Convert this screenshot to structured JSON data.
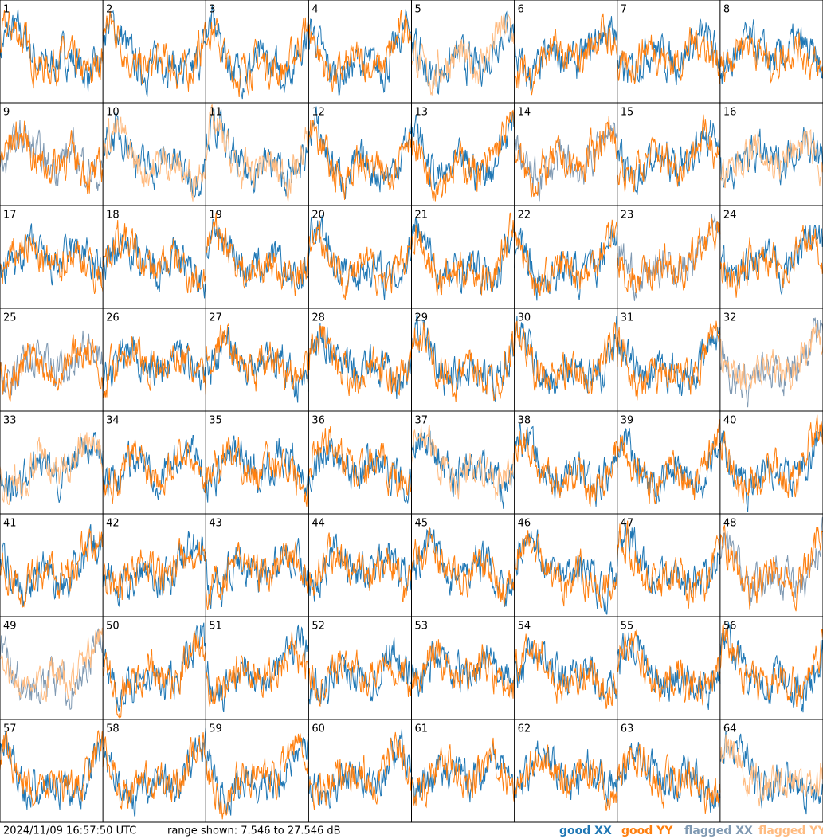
{
  "panels": [
    {
      "label": "1",
      "xx": "good",
      "yy": "good"
    },
    {
      "label": "2",
      "xx": "good",
      "yy": "good"
    },
    {
      "label": "3",
      "xx": "good",
      "yy": "good"
    },
    {
      "label": "4",
      "xx": "good",
      "yy": "good"
    },
    {
      "label": "5",
      "xx": "good",
      "yy": "flagged"
    },
    {
      "label": "6",
      "xx": "good",
      "yy": "good"
    },
    {
      "label": "7",
      "xx": "good",
      "yy": "good"
    },
    {
      "label": "8",
      "xx": "good",
      "yy": "good"
    },
    {
      "label": "9",
      "xx": "flagged",
      "yy": "good"
    },
    {
      "label": "10",
      "xx": "good",
      "yy": "flagged"
    },
    {
      "label": "11",
      "xx": "good",
      "yy": "flagged"
    },
    {
      "label": "12",
      "xx": "good",
      "yy": "good"
    },
    {
      "label": "13",
      "xx": "good",
      "yy": "good"
    },
    {
      "label": "14",
      "xx": "flagged",
      "yy": "good"
    },
    {
      "label": "15",
      "xx": "good",
      "yy": "good"
    },
    {
      "label": "16",
      "xx": "good",
      "yy": "flagged"
    },
    {
      "label": "17",
      "xx": "good",
      "yy": "good"
    },
    {
      "label": "18",
      "xx": "good",
      "yy": "good"
    },
    {
      "label": "19",
      "xx": "good",
      "yy": "good"
    },
    {
      "label": "20",
      "xx": "good",
      "yy": "good"
    },
    {
      "label": "21",
      "xx": "good",
      "yy": "good"
    },
    {
      "label": "22",
      "xx": "good",
      "yy": "good"
    },
    {
      "label": "23",
      "xx": "flagged",
      "yy": "good"
    },
    {
      "label": "24",
      "xx": "good",
      "yy": "good"
    },
    {
      "label": "25",
      "xx": "flagged",
      "yy": "good"
    },
    {
      "label": "26",
      "xx": "good",
      "yy": "good"
    },
    {
      "label": "27",
      "xx": "good",
      "yy": "good"
    },
    {
      "label": "28",
      "xx": "good",
      "yy": "good"
    },
    {
      "label": "29",
      "xx": "good",
      "yy": "good"
    },
    {
      "label": "30",
      "xx": "good",
      "yy": "good"
    },
    {
      "label": "31",
      "xx": "good",
      "yy": "good"
    },
    {
      "label": "32",
      "xx": "flagged",
      "yy": "flagged"
    },
    {
      "label": "33",
      "xx": "good",
      "yy": "flagged"
    },
    {
      "label": "34",
      "xx": "good",
      "yy": "good"
    },
    {
      "label": "35",
      "xx": "good",
      "yy": "good"
    },
    {
      "label": "36",
      "xx": "good",
      "yy": "good"
    },
    {
      "label": "37",
      "xx": "good",
      "yy": "flagged"
    },
    {
      "label": "38",
      "xx": "good",
      "yy": "good"
    },
    {
      "label": "39",
      "xx": "good",
      "yy": "good"
    },
    {
      "label": "40",
      "xx": "good",
      "yy": "good"
    },
    {
      "label": "41",
      "xx": "good",
      "yy": "good"
    },
    {
      "label": "42",
      "xx": "good",
      "yy": "good"
    },
    {
      "label": "43",
      "xx": "good",
      "yy": "good"
    },
    {
      "label": "44",
      "xx": "good",
      "yy": "good"
    },
    {
      "label": "45",
      "xx": "good",
      "yy": "good"
    },
    {
      "label": "46",
      "xx": "good",
      "yy": "good"
    },
    {
      "label": "47",
      "xx": "good",
      "yy": "good"
    },
    {
      "label": "48",
      "xx": "flagged",
      "yy": "good"
    },
    {
      "label": "49",
      "xx": "flagged",
      "yy": "flagged"
    },
    {
      "label": "50",
      "xx": "good",
      "yy": "good"
    },
    {
      "label": "51",
      "xx": "good",
      "yy": "good"
    },
    {
      "label": "52",
      "xx": "good",
      "yy": "good"
    },
    {
      "label": "53",
      "xx": "good",
      "yy": "good"
    },
    {
      "label": "54",
      "xx": "good",
      "yy": "good"
    },
    {
      "label": "55",
      "xx": "good",
      "yy": "good"
    },
    {
      "label": "56",
      "xx": "good",
      "yy": "good"
    },
    {
      "label": "57",
      "xx": "good",
      "yy": "good"
    },
    {
      "label": "58",
      "xx": "good",
      "yy": "good"
    },
    {
      "label": "59",
      "xx": "good",
      "yy": "good"
    },
    {
      "label": "60",
      "xx": "good",
      "yy": "good"
    },
    {
      "label": "61",
      "xx": "good",
      "yy": "good"
    },
    {
      "label": "62",
      "xx": "good",
      "yy": "good"
    },
    {
      "label": "63",
      "xx": "good",
      "yy": "good"
    },
    {
      "label": "64",
      "xx": "good",
      "yy": "flagged"
    }
  ],
  "footer": {
    "timestamp": "2024/11/09 16:57:50 UTC",
    "range": "range shown: 7.546 to 27.546 dB"
  },
  "legend": [
    {
      "text": "good XX",
      "color": "#1f77b4"
    },
    {
      "text": "good YY",
      "color": "#ff7f0e"
    },
    {
      "text": "flagged XX",
      "color": "#7f99b2"
    },
    {
      "text": "flagged YY",
      "color": "#ffbb80"
    }
  ]
}
